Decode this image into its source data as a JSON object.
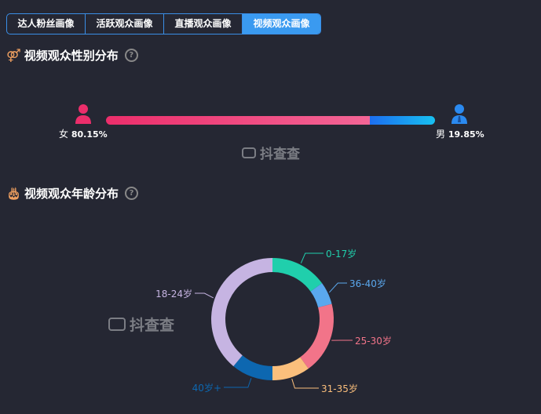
{
  "tabs": [
    {
      "label": "达人粉丝画像"
    },
    {
      "label": "活跃观众画像"
    },
    {
      "label": "直播观众画像"
    },
    {
      "label": "视频观众画像",
      "active": true
    }
  ],
  "gender": {
    "title": "视频观众性别分布",
    "icon": "gender-icon",
    "female": {
      "label": "女",
      "percent": "80.15%",
      "value": 80.15,
      "color": "#ec2e6b"
    },
    "male": {
      "label": "男",
      "percent": "19.85%",
      "value": 19.85,
      "color": "#2b8af0"
    }
  },
  "age": {
    "title": "视频观众年龄分布",
    "icon": "cake-icon"
  },
  "watermark": "抖查查",
  "chart_data": {
    "type": "pie",
    "donut": true,
    "legend": "none",
    "slices": [
      {
        "name": "0-17岁",
        "value": 15,
        "color": "#20cfac"
      },
      {
        "name": "36-40岁",
        "value": 6,
        "color": "#5aa8ee"
      },
      {
        "name": "25-30岁",
        "value": 19,
        "color": "#f27489"
      },
      {
        "name": "31-35岁",
        "value": 10,
        "color": "#fbbf7c"
      },
      {
        "name": "40岁+",
        "value": 11,
        "color": "#0d67b0"
      },
      {
        "name": "18-24岁",
        "value": 39,
        "color": "#c6b4e2"
      }
    ]
  }
}
